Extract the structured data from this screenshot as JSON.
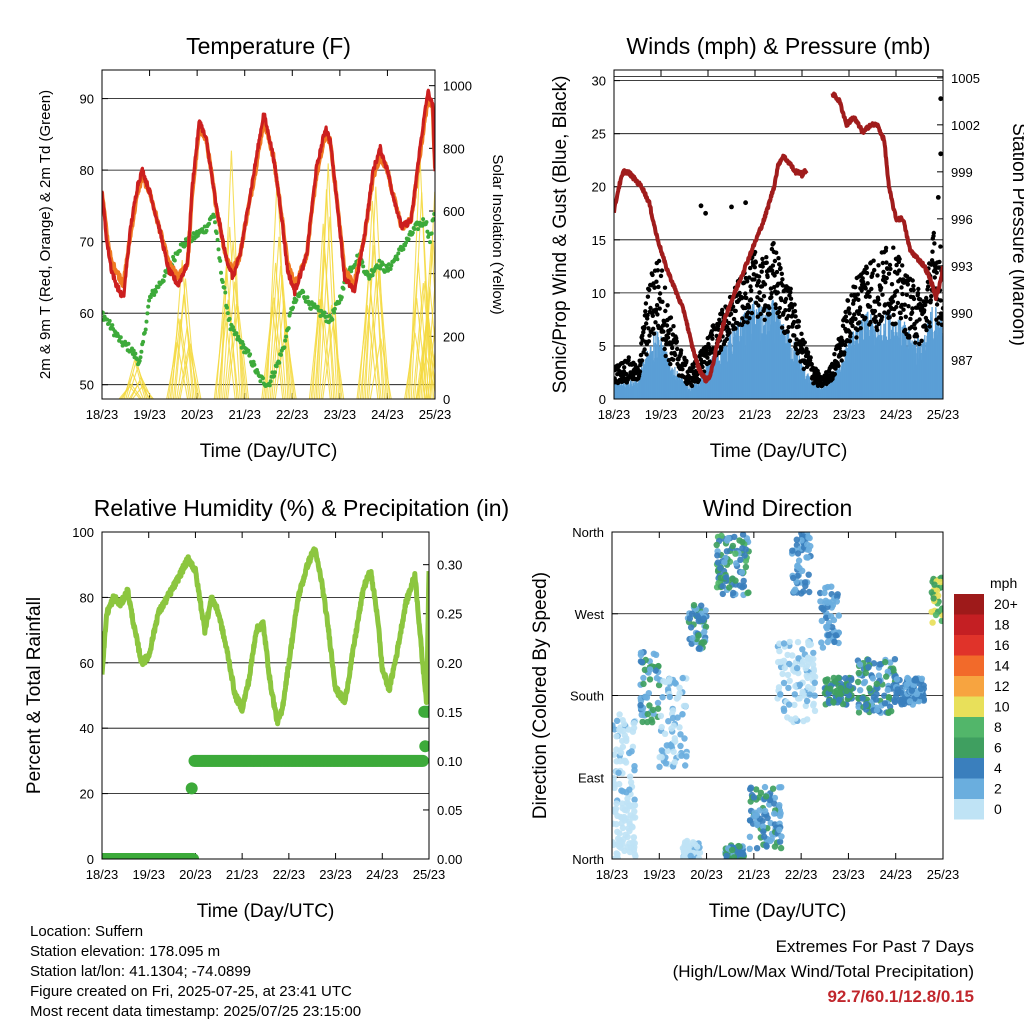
{
  "colors": {
    "t2m": "#cc1f1f",
    "t9m": "#f07a22",
    "td": "#3daa3a",
    "solar": "#f5d940",
    "gust": "#000000",
    "wind": "#5b9fd6",
    "pressure": "#a01c1c",
    "rh": "#8cc63f",
    "precip": "#3daa3a"
  },
  "chart_data": [
    {
      "type": "line",
      "title": "Temperature (F)",
      "xlabel": "Time (Day/UTC)",
      "ylabel": "2m & 9m T (Red, Orange) & 2m Td (Green)",
      "y2label": "Solar Insolation (Yellow)",
      "x_ticks": [
        "18/23",
        "19/23",
        "20/23",
        "21/23",
        "22/23",
        "23/23",
        "24/23",
        "25/23"
      ],
      "xlim": [
        0,
        7
      ],
      "ylim": [
        48,
        94
      ],
      "y_ticks": [
        50,
        60,
        70,
        80,
        90
      ],
      "y2lim": [
        0,
        1050
      ],
      "y2_ticks": [
        0,
        200,
        400,
        600,
        800,
        1000
      ],
      "grid": "horizontal",
      "series": [
        {
          "key": "t2m",
          "x": [
            0,
            0.1,
            0.2,
            0.3,
            0.45,
            0.6,
            0.75,
            0.85,
            1.0,
            1.2,
            1.4,
            1.6,
            1.8,
            1.9,
            2.05,
            2.2,
            2.4,
            2.6,
            2.75,
            2.9,
            3.0,
            3.2,
            3.4,
            3.6,
            3.75,
            3.9,
            4.05,
            4.3,
            4.5,
            4.7,
            4.8,
            4.95,
            5.1,
            5.3,
            5.5,
            5.7,
            5.85,
            6.0,
            6.1,
            6.3,
            6.5,
            6.7,
            6.85,
            6.95,
            7.0
          ],
          "y": [
            77,
            70,
            66,
            64,
            62,
            72,
            78,
            80,
            77,
            72,
            66,
            64,
            67,
            78,
            87,
            84,
            75,
            68,
            65,
            68,
            72,
            80,
            88,
            82,
            75,
            66,
            63,
            68,
            80,
            86,
            84,
            75,
            65,
            63,
            70,
            80,
            83,
            80,
            77,
            72,
            73,
            84,
            91,
            89,
            80
          ]
        },
        {
          "key": "t9m",
          "x": [
            0,
            0.1,
            0.2,
            0.3,
            0.45,
            0.6,
            0.75,
            0.85,
            1.0,
            1.2,
            1.4,
            1.6,
            1.8,
            1.9,
            2.05,
            2.2,
            2.4,
            2.6,
            2.75,
            2.9,
            3.0,
            3.2,
            3.4,
            3.6,
            3.75,
            3.9,
            4.05,
            4.3,
            4.5,
            4.7,
            4.8,
            4.95,
            5.1,
            5.3,
            5.5,
            5.7,
            5.85,
            6.0,
            6.1,
            6.3,
            6.5,
            6.7,
            6.85,
            6.95,
            7.0
          ],
          "y": [
            77,
            71,
            67,
            66,
            64,
            71,
            77,
            79,
            77,
            72,
            67,
            65,
            67,
            77,
            86,
            84,
            75,
            68,
            66,
            68,
            72,
            79,
            87,
            82,
            75,
            67,
            64,
            68,
            79,
            85,
            84,
            75,
            66,
            64,
            70,
            79,
            82,
            80,
            77,
            72,
            73,
            83,
            90,
            89,
            80
          ]
        },
        {
          "key": "td",
          "x": [
            0,
            0.2,
            0.4,
            0.6,
            0.8,
            1.0,
            1.2,
            1.4,
            1.6,
            1.8,
            2.0,
            2.2,
            2.35,
            2.5,
            2.7,
            2.9,
            3.1,
            3.3,
            3.5,
            3.7,
            3.85,
            4.0,
            4.2,
            4.4,
            4.6,
            4.8,
            5.0,
            5.2,
            5.4,
            5.6,
            5.8,
            6.0,
            6.2,
            6.4,
            6.6,
            6.8,
            6.9,
            7.0
          ],
          "y": [
            60,
            58,
            56,
            55,
            53,
            62,
            64,
            66,
            69,
            70,
            71,
            72,
            74,
            66,
            58,
            56,
            54,
            51,
            50,
            53,
            56,
            61,
            63,
            61,
            60,
            59,
            62,
            66,
            68,
            65,
            67,
            66,
            68,
            70,
            72,
            73,
            70,
            75
          ]
        }
      ],
      "solar": {
        "peaks": [
          150,
          600,
          930,
          950,
          970,
          980,
          960,
          890
        ],
        "peak_x": [
          0.72,
          1.72,
          2.72,
          3.72,
          4.72,
          5.72,
          6.72,
          6.96
        ]
      }
    },
    {
      "type": "scatter",
      "title": "Winds (mph) & Pressure (mb)",
      "xlabel": "Time (Day/UTC)",
      "ylabel": "Sonic/Prop Wind & Gust (Blue, Black)",
      "y2label": "Station Pressure (Maroon)",
      "x_ticks": [
        "18/23",
        "19/23",
        "20/23",
        "21/23",
        "22/23",
        "23/23",
        "24/23",
        "25/23"
      ],
      "xlim": [
        0,
        7
      ],
      "ylim": [
        0,
        31
      ],
      "y_ticks": [
        0,
        5,
        10,
        15,
        20,
        25,
        30
      ],
      "y2lim": [
        984.5,
        1005.5
      ],
      "y2_ticks": [
        987,
        990,
        993,
        996,
        999,
        1002,
        1005
      ],
      "grid": "horizontal",
      "pressure": {
        "segments": [
          {
            "x": [
              0,
              0.1,
              0.2,
              0.3,
              0.45,
              0.6,
              0.75,
              0.9,
              1.1,
              1.3,
              1.5,
              1.65,
              1.8,
              1.95,
              2.05,
              2.2,
              2.4,
              2.6,
              2.8,
              3.0,
              3.2,
              3.4,
              3.5,
              3.6,
              3.75,
              3.85,
              3.95,
              4.0,
              4.05,
              4.1
            ],
            "y": [
              996.5,
              998,
              999,
              999,
              998.5,
              998,
              997,
              995,
              993,
              991.5,
              990,
              988,
              986.5,
              985.7,
              986,
              988,
              990,
              991.5,
              993,
              994.5,
              996,
              998,
              999.5,
              1000,
              999.5,
              999,
              999,
              998.8,
              999,
              999
            ]
          },
          {
            "x": [
              4.65,
              4.8,
              4.95,
              5.1,
              5.3,
              5.45,
              5.6,
              5.75,
              5.85,
              6.0,
              6.15,
              6.3,
              6.45,
              6.6,
              6.75,
              6.85,
              6.95,
              7.0
            ],
            "y": [
              1004,
              1003.5,
              1002,
              1002.5,
              1001.5,
              1002,
              1002,
              1001,
              998,
              996,
              996,
              994,
              993.5,
              993,
              992,
              991,
              992,
              993
            ]
          }
        ]
      },
      "gust_envelope": {
        "x": [
          0,
          0.3,
          0.5,
          0.7,
          0.9,
          1.0,
          1.2,
          1.4,
          1.6,
          1.8,
          2.0,
          2.2,
          2.4,
          2.6,
          2.8,
          3.0,
          3.2,
          3.4,
          3.6,
          3.8,
          4.0,
          4.2,
          4.4,
          4.6,
          4.8,
          5.0,
          5.2,
          5.4,
          5.6,
          5.8,
          6.0,
          6.2,
          6.4,
          6.6,
          6.8,
          7.0
        ],
        "y": [
          3,
          4,
          3,
          10,
          14,
          13,
          8,
          5,
          3,
          4,
          6,
          8,
          9,
          11,
          12,
          14,
          13,
          15,
          12,
          10,
          6,
          4,
          2,
          3,
          6,
          10,
          12,
          14,
          13,
          15,
          14,
          12,
          11,
          10,
          16,
          14
        ]
      },
      "sonic_envelope": {
        "x": [
          0,
          0.3,
          0.5,
          0.7,
          0.9,
          1.0,
          1.2,
          1.4,
          1.6,
          1.8,
          2.0,
          2.2,
          2.4,
          2.6,
          2.8,
          3.0,
          3.2,
          3.4,
          3.6,
          3.8,
          4.0,
          4.2,
          4.4,
          4.6,
          4.8,
          5.0,
          5.2,
          5.4,
          5.6,
          5.8,
          6.0,
          6.2,
          6.4,
          6.6,
          6.8,
          7.0
        ],
        "y": [
          1.5,
          1.5,
          1.5,
          4,
          6,
          5,
          3,
          2,
          1,
          1.5,
          3,
          4,
          5,
          6,
          7,
          8,
          7,
          8,
          6,
          5,
          3,
          1.5,
          1,
          1.5,
          3,
          5,
          6,
          7,
          6,
          7,
          7,
          6,
          5,
          5,
          8,
          6
        ]
      },
      "outliers": [
        {
          "x": 1.85,
          "y": 18.2
        },
        {
          "x": 1.95,
          "y": 17.5
        },
        {
          "x": 2.8,
          "y": 18.5
        },
        {
          "x": 2.5,
          "y": 18.1
        },
        {
          "x": 6.95,
          "y": 28.3
        },
        {
          "x": 6.95,
          "y": 23.1
        },
        {
          "x": 6.9,
          "y": 19
        }
      ]
    },
    {
      "type": "line",
      "title": "Relative Humidity (%) & Precipitation (in)",
      "xlabel": "Time (Day/UTC)",
      "ylabel": "Percent & Total Rainfall",
      "x_ticks": [
        "18/23",
        "19/23",
        "20/23",
        "21/23",
        "22/23",
        "23/23",
        "24/23",
        "25/23"
      ],
      "xlim": [
        0,
        7
      ],
      "ylim": [
        0,
        100
      ],
      "y_ticks": [
        0,
        20,
        40,
        60,
        80,
        100
      ],
      "y2lim": [
        0,
        0.3333
      ],
      "y2_ticks": [
        "0.00",
        "0.05",
        "0.10",
        "0.15",
        "0.20",
        "0.25",
        "0.30"
      ],
      "grid": "horizontal",
      "series": [
        {
          "key": "rh",
          "x": [
            0,
            0.1,
            0.25,
            0.4,
            0.55,
            0.7,
            0.85,
            1.0,
            1.2,
            1.4,
            1.6,
            1.85,
            2.0,
            2.2,
            2.35,
            2.5,
            2.7,
            2.85,
            3.0,
            3.15,
            3.3,
            3.45,
            3.6,
            3.75,
            3.85,
            4.0,
            4.2,
            4.4,
            4.55,
            4.7,
            4.85,
            5.0,
            5.2,
            5.4,
            5.6,
            5.75,
            5.9,
            6.0,
            6.15,
            6.3,
            6.5,
            6.7,
            6.85,
            6.95,
            7.0
          ],
          "y": [
            57,
            75,
            80,
            78,
            82,
            70,
            60,
            62,
            75,
            80,
            85,
            92,
            88,
            70,
            80,
            75,
            62,
            50,
            46,
            55,
            70,
            72,
            54,
            42,
            45,
            60,
            80,
            90,
            95,
            85,
            70,
            52,
            48,
            66,
            83,
            88,
            74,
            58,
            52,
            62,
            78,
            87,
            62,
            48,
            88
          ]
        },
        {
          "key": "precip",
          "x": [
            0,
            0.2,
            0.4,
            0.6,
            0.8,
            1.0,
            1.2,
            1.4,
            1.6,
            1.8,
            1.95,
            2.0,
            2.3,
            2.6,
            3.0,
            3.5,
            4.0,
            4.5,
            5.0,
            5.5,
            6.0,
            6.5,
            6.9,
            7.0
          ],
          "y": [
            0,
            0,
            0,
            0,
            0,
            0,
            0,
            0,
            0,
            0,
            0,
            0.1,
            0.1,
            0.1,
            0.1,
            0.1,
            0.1,
            0.1,
            0.1,
            0.1,
            0.1,
            0.1,
            0.1,
            0.15
          ]
        }
      ],
      "precip_extra": [
        {
          "x": 1.92,
          "y": 0.072
        },
        {
          "x": 6.92,
          "y": 0.115
        }
      ]
    },
    {
      "type": "scatter",
      "title": "Wind Direction",
      "xlabel": "Time (Day/UTC)",
      "ylabel": "Direction (Colored By Speed)",
      "x_ticks": [
        "18/23",
        "19/23",
        "20/23",
        "21/23",
        "22/23",
        "23/23",
        "24/23",
        "25/23"
      ],
      "xlim": [
        0,
        7
      ],
      "ylim": [
        0,
        360
      ],
      "y_tick_labels": [
        "North",
        "East",
        "South",
        "West",
        "North"
      ],
      "grid": "horizontal",
      "colorbar": {
        "unit": "mph",
        "labels": [
          "20+",
          "18",
          "16",
          "14",
          "12",
          "10",
          "8",
          "6",
          "4",
          "2",
          "0"
        ],
        "colors": [
          "#9e1a1a",
          "#c41f23",
          "#e0332a",
          "#f26a2a",
          "#f7a440",
          "#e8e05a",
          "#52b66a",
          "#3f9f60",
          "#3a7fbd",
          "#6aaede",
          "#bfe3f5"
        ]
      },
      "clusters": [
        {
          "x": [
            0.0,
            0.5
          ],
          "dir": [
            60,
            160
          ],
          "spd": [
            0,
            3
          ]
        },
        {
          "x": [
            0.0,
            0.5
          ],
          "dir": [
            0,
            60
          ],
          "spd": [
            0,
            2
          ]
        },
        {
          "x": [
            0.6,
            1.0
          ],
          "dir": [
            150,
            230
          ],
          "spd": [
            2,
            8
          ]
        },
        {
          "x": [
            1.0,
            1.6
          ],
          "dir": [
            100,
            200
          ],
          "spd": [
            0,
            4
          ]
        },
        {
          "x": [
            1.6,
            2.0
          ],
          "dir": [
            230,
            280
          ],
          "spd": [
            2,
            8
          ]
        },
        {
          "x": [
            1.5,
            1.9
          ],
          "dir": [
            0,
            20
          ],
          "spd": [
            0,
            3
          ]
        },
        {
          "x": [
            2.2,
            2.9
          ],
          "dir": [
            290,
            360
          ],
          "spd": [
            3,
            10
          ]
        },
        {
          "x": [
            2.9,
            3.6
          ],
          "dir": [
            10,
            80
          ],
          "spd": [
            2,
            7
          ]
        },
        {
          "x": [
            2.4,
            2.8
          ],
          "dir": [
            0,
            15
          ],
          "spd": [
            3,
            8
          ]
        },
        {
          "x": [
            3.5,
            4.3
          ],
          "dir": [
            150,
            240
          ],
          "spd": [
            0,
            3
          ]
        },
        {
          "x": [
            3.8,
            4.2
          ],
          "dir": [
            290,
            360
          ],
          "spd": [
            3,
            5
          ]
        },
        {
          "x": [
            4.5,
            5.1
          ],
          "dir": [
            170,
            200
          ],
          "spd": [
            4,
            8
          ]
        },
        {
          "x": [
            4.4,
            4.8
          ],
          "dir": [
            230,
            300
          ],
          "spd": [
            2,
            5
          ]
        },
        {
          "x": [
            5.2,
            6.0
          ],
          "dir": [
            160,
            220
          ],
          "spd": [
            3,
            8
          ]
        },
        {
          "x": [
            6.0,
            6.6
          ],
          "dir": [
            170,
            200
          ],
          "spd": [
            3,
            6
          ]
        },
        {
          "x": [
            6.75,
            7.0
          ],
          "dir": [
            260,
            310
          ],
          "spd": [
            6,
            12
          ]
        }
      ]
    }
  ],
  "info": {
    "location": "Location: Suffern",
    "elevation": "Station elevation: 178.095 m",
    "latlon": "Station lat/lon: 41.1304; -74.0899",
    "created": "Figure created on Fri, 2025-07-25, at 23:41 UTC",
    "recent": "Most recent data timestamp: 2025/07/25 23:15:00"
  },
  "extremes": {
    "line1": "Extremes For Past 7 Days",
    "line2": "(High/Low/Max Wind/Total Precipitation)",
    "values": "92.7/60.1/12.8/0.15"
  }
}
